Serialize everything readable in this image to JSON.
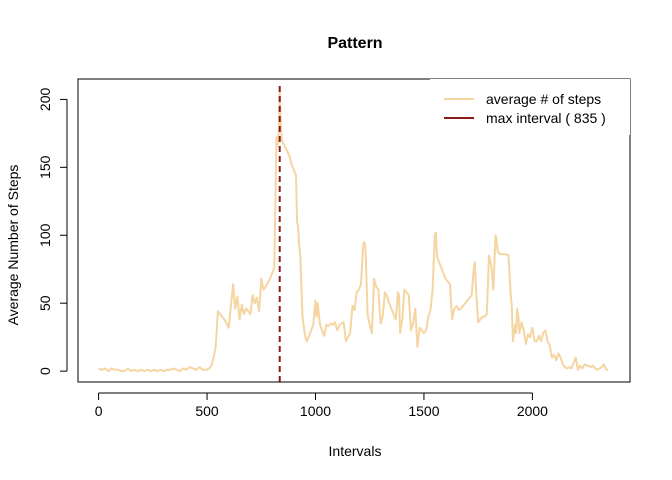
{
  "chart_data": {
    "type": "line",
    "title": "Pattern",
    "xlabel": "Intervals",
    "ylabel": "Average Number of Steps",
    "xlim": [
      -95,
      2450
    ],
    "ylim": [
      -8,
      215
    ],
    "x_ticks": [
      0,
      500,
      1000,
      1500,
      2000
    ],
    "y_ticks": [
      0,
      50,
      100,
      150,
      200
    ],
    "legend_position": "top-right",
    "legend": [
      {
        "label": "average # of steps",
        "color": "#f5d5a2"
      },
      {
        "label": "max interval ( 835 )",
        "color": "#8b1a1a"
      }
    ],
    "max_line": {
      "x": 835,
      "color": "#8b1a1a",
      "style": "dashed"
    },
    "series": [
      {
        "color": "#f5d5a2",
        "points": [
          [
            0,
            2
          ],
          [
            15,
            1
          ],
          [
            30,
            2
          ],
          [
            45,
            0
          ],
          [
            60,
            2
          ],
          [
            75,
            1
          ],
          [
            90,
            1
          ],
          [
            105,
            0
          ],
          [
            120,
            0
          ],
          [
            135,
            2
          ],
          [
            150,
            0
          ],
          [
            165,
            1
          ],
          [
            180,
            0
          ],
          [
            195,
            1
          ],
          [
            210,
            0
          ],
          [
            225,
            1
          ],
          [
            240,
            0
          ],
          [
            255,
            1
          ],
          [
            270,
            0
          ],
          [
            285,
            1
          ],
          [
            300,
            0
          ],
          [
            315,
            1
          ],
          [
            330,
            1
          ],
          [
            345,
            2
          ],
          [
            360,
            1
          ],
          [
            375,
            0
          ],
          [
            390,
            2
          ],
          [
            405,
            1
          ],
          [
            420,
            3
          ],
          [
            435,
            2
          ],
          [
            450,
            1
          ],
          [
            465,
            3
          ],
          [
            480,
            1
          ],
          [
            495,
            1
          ],
          [
            510,
            2
          ],
          [
            520,
            4
          ],
          [
            530,
            10
          ],
          [
            540,
            18
          ],
          [
            550,
            44
          ],
          [
            560,
            42
          ],
          [
            570,
            40
          ],
          [
            580,
            38
          ],
          [
            590,
            35
          ],
          [
            600,
            32
          ],
          [
            610,
            48
          ],
          [
            620,
            64
          ],
          [
            630,
            46
          ],
          [
            640,
            55
          ],
          [
            650,
            38
          ],
          [
            660,
            49
          ],
          [
            670,
            42
          ],
          [
            680,
            46
          ],
          [
            690,
            44
          ],
          [
            700,
            42
          ],
          [
            710,
            56
          ],
          [
            720,
            50
          ],
          [
            730,
            54
          ],
          [
            740,
            44
          ],
          [
            750,
            68
          ],
          [
            760,
            60
          ],
          [
            770,
            62
          ],
          [
            780,
            65
          ],
          [
            790,
            68
          ],
          [
            800,
            72
          ],
          [
            810,
            76
          ],
          [
            820,
            172
          ],
          [
            825,
            166
          ],
          [
            830,
            174
          ],
          [
            835,
            206
          ],
          [
            840,
            182
          ],
          [
            845,
            170
          ],
          [
            850,
            168
          ],
          [
            860,
            165
          ],
          [
            870,
            162
          ],
          [
            880,
            158
          ],
          [
            890,
            152
          ],
          [
            900,
            148
          ],
          [
            910,
            144
          ],
          [
            915,
            110
          ],
          [
            920,
            106
          ],
          [
            925,
            92
          ],
          [
            930,
            85
          ],
          [
            940,
            40
          ],
          [
            945,
            34
          ],
          [
            950,
            28
          ],
          [
            955,
            24
          ],
          [
            960,
            22
          ],
          [
            970,
            26
          ],
          [
            980,
            30
          ],
          [
            990,
            34
          ],
          [
            1000,
            52
          ],
          [
            1005,
            40
          ],
          [
            1010,
            50
          ],
          [
            1020,
            35
          ],
          [
            1030,
            30
          ],
          [
            1040,
            26
          ],
          [
            1050,
            34
          ],
          [
            1060,
            33
          ],
          [
            1070,
            35
          ],
          [
            1080,
            34
          ],
          [
            1090,
            36
          ],
          [
            1100,
            30
          ],
          [
            1110,
            34
          ],
          [
            1120,
            35
          ],
          [
            1130,
            36
          ],
          [
            1140,
            22
          ],
          [
            1150,
            25
          ],
          [
            1160,
            28
          ],
          [
            1170,
            48
          ],
          [
            1180,
            45
          ],
          [
            1190,
            58
          ],
          [
            1200,
            60
          ],
          [
            1210,
            64
          ],
          [
            1220,
            93
          ],
          [
            1225,
            95
          ],
          [
            1230,
            92
          ],
          [
            1240,
            42
          ],
          [
            1250,
            34
          ],
          [
            1260,
            28
          ],
          [
            1270,
            68
          ],
          [
            1280,
            62
          ],
          [
            1290,
            60
          ],
          [
            1300,
            35
          ],
          [
            1310,
            40
          ],
          [
            1320,
            58
          ],
          [
            1330,
            55
          ],
          [
            1340,
            50
          ],
          [
            1350,
            46
          ],
          [
            1360,
            42
          ],
          [
            1370,
            38
          ],
          [
            1380,
            58
          ],
          [
            1385,
            56
          ],
          [
            1390,
            28
          ],
          [
            1400,
            38
          ],
          [
            1410,
            60
          ],
          [
            1420,
            58
          ],
          [
            1430,
            56
          ],
          [
            1440,
            30
          ],
          [
            1450,
            35
          ],
          [
            1460,
            46
          ],
          [
            1470,
            18
          ],
          [
            1480,
            32
          ],
          [
            1490,
            30
          ],
          [
            1500,
            28
          ],
          [
            1510,
            30
          ],
          [
            1520,
            40
          ],
          [
            1530,
            45
          ],
          [
            1540,
            60
          ],
          [
            1550,
            100
          ],
          [
            1555,
            102
          ],
          [
            1560,
            84
          ],
          [
            1580,
            76
          ],
          [
            1600,
            68
          ],
          [
            1620,
            64
          ],
          [
            1630,
            38
          ],
          [
            1640,
            46
          ],
          [
            1650,
            48
          ],
          [
            1660,
            45
          ],
          [
            1670,
            46
          ],
          [
            1680,
            48
          ],
          [
            1690,
            50
          ],
          [
            1700,
            52
          ],
          [
            1710,
            54
          ],
          [
            1720,
            56
          ],
          [
            1730,
            76
          ],
          [
            1735,
            80
          ],
          [
            1740,
            60
          ],
          [
            1750,
            36
          ],
          [
            1760,
            38
          ],
          [
            1770,
            40
          ],
          [
            1780,
            40
          ],
          [
            1790,
            42
          ],
          [
            1800,
            85
          ],
          [
            1810,
            78
          ],
          [
            1820,
            60
          ],
          [
            1830,
            100
          ],
          [
            1835,
            96
          ],
          [
            1840,
            88
          ],
          [
            1850,
            86
          ],
          [
            1860,
            86
          ],
          [
            1870,
            86
          ],
          [
            1880,
            86
          ],
          [
            1890,
            85
          ],
          [
            1900,
            56
          ],
          [
            1905,
            48
          ],
          [
            1910,
            22
          ],
          [
            1920,
            34
          ],
          [
            1925,
            28
          ],
          [
            1930,
            46
          ],
          [
            1935,
            40
          ],
          [
            1940,
            28
          ],
          [
            1950,
            36
          ],
          [
            1960,
            30
          ],
          [
            1970,
            20
          ],
          [
            1980,
            27
          ],
          [
            1990,
            25
          ],
          [
            2000,
            32
          ],
          [
            2010,
            22
          ],
          [
            2020,
            22
          ],
          [
            2030,
            26
          ],
          [
            2040,
            22
          ],
          [
            2050,
            28
          ],
          [
            2060,
            30
          ],
          [
            2070,
            22
          ],
          [
            2080,
            19
          ],
          [
            2090,
            10
          ],
          [
            2100,
            12
          ],
          [
            2110,
            8
          ],
          [
            2120,
            13
          ],
          [
            2130,
            10
          ],
          [
            2140,
            5
          ],
          [
            2150,
            3
          ],
          [
            2160,
            2
          ],
          [
            2170,
            3
          ],
          [
            2180,
            2
          ],
          [
            2190,
            6
          ],
          [
            2200,
            10
          ],
          [
            2210,
            1
          ],
          [
            2220,
            4
          ],
          [
            2230,
            2
          ],
          [
            2240,
            5
          ],
          [
            2250,
            4
          ],
          [
            2260,
            4
          ],
          [
            2270,
            3
          ],
          [
            2280,
            4
          ],
          [
            2290,
            2
          ],
          [
            2300,
            1
          ],
          [
            2310,
            2
          ],
          [
            2320,
            3
          ],
          [
            2330,
            5
          ],
          [
            2340,
            1
          ],
          [
            2350,
            1
          ]
        ]
      }
    ]
  }
}
